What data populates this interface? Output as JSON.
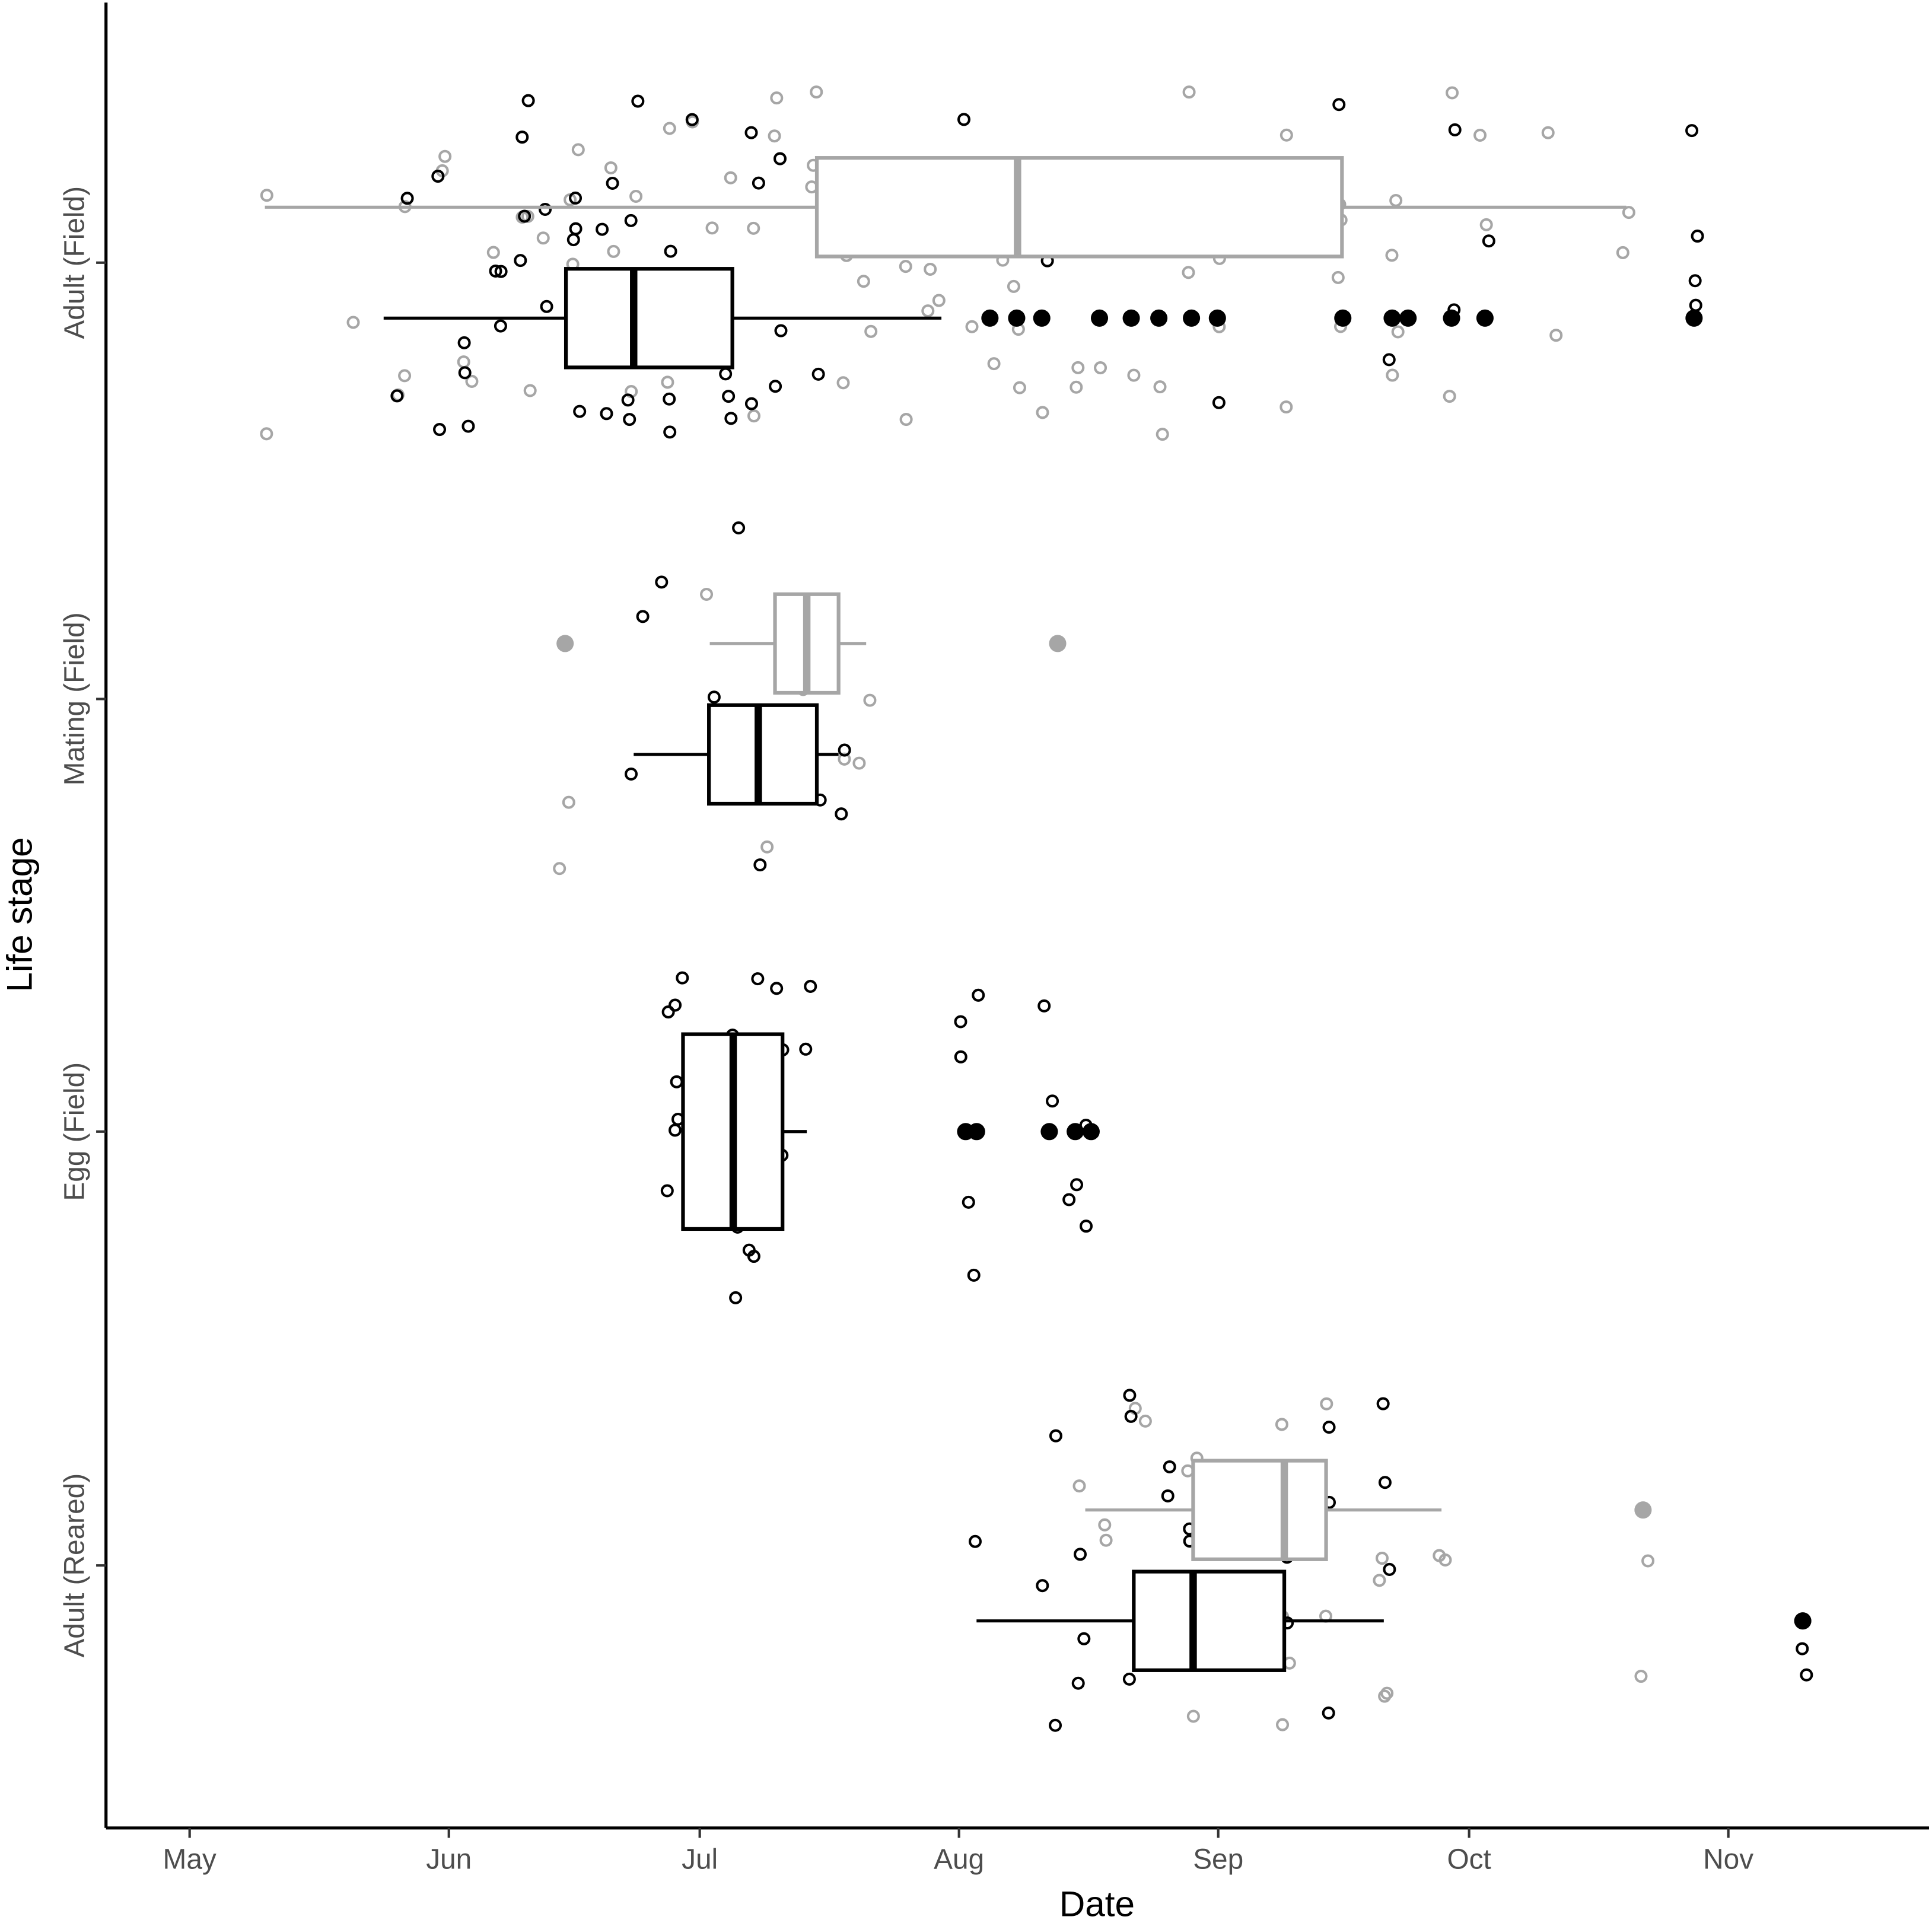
{
  "chart_data": {
    "type": "boxplot",
    "x_label": "Date",
    "y_label": "Life stage",
    "categories": [
      "Adult (Field)",
      "Mating (Field)",
      "Egg (Field)",
      "Adult (Reared)"
    ],
    "xlim": [
      111,
      329
    ],
    "xticks": [
      {
        "value": 121,
        "label": "May"
      },
      {
        "value": 152,
        "label": "Jun"
      },
      {
        "value": 182,
        "label": "Jul"
      },
      {
        "value": 213,
        "label": "Aug"
      },
      {
        "value": 244,
        "label": "Sep"
      },
      {
        "value": 274,
        "label": "Oct"
      },
      {
        "value": 305,
        "label": "Nov"
      }
    ],
    "series": [
      {
        "color": "#a6a6a6",
        "values": [
          {
            "min": 130,
            "q1": 196,
            "median": 220,
            "q3": 258.8,
            "max": 292.8,
            "outliers": [],
            "points": [
              130,
              130,
              140.3,
              146.4,
              146.4,
              146.4,
              151.1,
              151.1,
              154.2,
              154.2,
              157.9,
              161.1,
              161.1,
              161.1,
              163.4,
              167,
              167,
              167,
              171,
              171,
              173.9,
              173.9,
              178.1,
              178.1,
              181,
              183.2,
              185.4,
              188.6,
              188.6,
              191.3,
              191.3,
              195.7,
              195.7,
              195.7,
              199.1,
              199.1,
              202.3,
              202.3,
              206.7,
              206.7,
              206.7,
              210,
              210,
              210,
              214.1,
              214.1,
              217.5,
              217.5,
              220,
              220,
              220,
              223.6,
              223.6,
              227.3,
              227.3,
              230.3,
              230.3,
              233.6,
              233.6,
              236.9,
              236.9,
              240.8,
              240.8,
              243.9,
              243.9,
              251.9,
              251.9,
              251.9,
              251.9,
              258.9,
              258.9,
              258.9,
              258.9,
              264.8,
              264.8,
              264.8,
              264.8,
              272.2,
              272.2,
              275.9,
              275.9,
              284,
              284,
              292.8,
              292.8
            ]
          },
          {
            "min": 183.2,
            "q1": 191,
            "median": 194.8,
            "q3": 198.6,
            "max": 201.9,
            "outliers": [
              165.9,
              224.8
            ],
            "points": [
              165.9,
              165.9,
              183.2,
              189.8,
              194.5,
              198.6,
              201.1,
              202.3
            ]
          },
          null,
          {
            "min": 228.1,
            "q1": 241,
            "median": 251.9,
            "q3": 256.9,
            "max": 270.7,
            "outliers": [
              294.8
            ],
            "points": [
              228.1,
              230.7,
              230.7,
              234.7,
              234.7,
              241,
              241,
              241,
              251.9,
              251.9,
              251.9,
              251.9,
              251.9,
              256.9,
              256.9,
              263.8,
              263.8,
              263.8,
              263.8,
              270.7,
              270.7,
              294.7,
              294.7
            ]
          }
        ]
      },
      {
        "color": "#000000",
        "values": [
          {
            "min": 144.2,
            "q1": 166,
            "median": 174.1,
            "q3": 185.9,
            "max": 210.9,
            "outliers": [
              216.7,
              219.9,
              222.9,
              229.8,
              233.6,
              236.9,
              240.8,
              243.9,
              258.9,
              264.8,
              266.7,
              271.9,
              275.9,
              300.9
            ],
            "points": [
              146.4,
              146.4,
              151.1,
              151.1,
              154.2,
              154.2,
              154.2,
              157.9,
              157.9,
              157.9,
              161.1,
              161.1,
              161.1,
              161.1,
              163.4,
              163.4,
              167,
              167,
              167,
              167,
              171,
              171,
              171,
              173.9,
              173.9,
              173.9,
              173.9,
              178.1,
              178.1,
              178.1,
              181,
              181,
              181,
              183.2,
              183.2,
              185.4,
              185.4,
              185.4,
              188.6,
              188.6,
              188.6,
              191.3,
              191.3,
              191.3,
              195.7,
              199.1,
              214.1,
              217.5,
              223.6,
              236.9,
              243.9,
              258.9,
              264.8,
              272.2,
              272.2,
              275.9,
              300.9,
              300.9,
              300.9,
              300.9
            ]
          },
          {
            "min": 174.1,
            "q1": 183.1,
            "median": 189,
            "q3": 196,
            "max": 198.6,
            "outliers": [],
            "points": [
              173.5,
              175.5,
              178.1,
              183.2,
              186.9,
              189.8,
              192.8,
              195.7,
              198.6,
              198.6
            ]
          },
          {
            "min": 180,
            "q1": 180,
            "median": 186,
            "q3": 191.9,
            "max": 194.8,
            "outliers": [
              213.8,
              215.1,
              223.8,
              226.9,
              228.8
            ],
            "points": [
              178.8,
              178.8,
              178.8,
              178.8,
              178.8,
              178.8,
              180,
              180,
              180,
              186.1,
              186.1,
              186.1,
              188.6,
              188.6,
              188.6,
              191.7,
              191.7,
              191.7,
              195,
              195,
              213.8,
              213.8,
              214.8,
              214.8,
              214.8,
              223.9,
              223.9,
              226.6,
              226.6,
              228.6,
              228.6
            ]
          },
          {
            "min": 215.1,
            "q1": 233.9,
            "median": 241,
            "q3": 251.9,
            "max": 263.8,
            "outliers": [
              313.9
            ],
            "points": [
              215.1,
              222.5,
              223.9,
              223.9,
              227.8,
              227.8,
              227.8,
              233.9,
              233.9,
              233.9,
              237.6,
              237.6,
              241,
              241,
              241,
              251.9,
              251.9,
              256.9,
              256.9,
              256.9,
              263.8,
              263.8,
              263.8,
              313.9,
              313.9
            ]
          }
        ]
      }
    ]
  }
}
